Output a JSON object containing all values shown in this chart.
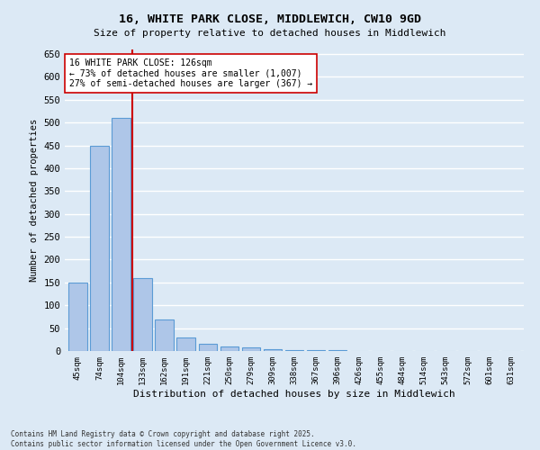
{
  "title_line1": "16, WHITE PARK CLOSE, MIDDLEWICH, CW10 9GD",
  "title_line2": "Size of property relative to detached houses in Middlewich",
  "xlabel": "Distribution of detached houses by size in Middlewich",
  "ylabel": "Number of detached properties",
  "categories": [
    "45sqm",
    "74sqm",
    "104sqm",
    "133sqm",
    "162sqm",
    "191sqm",
    "221sqm",
    "250sqm",
    "279sqm",
    "309sqm",
    "338sqm",
    "367sqm",
    "396sqm",
    "426sqm",
    "455sqm",
    "484sqm",
    "514sqm",
    "543sqm",
    "572sqm",
    "601sqm",
    "631sqm"
  ],
  "values": [
    150,
    450,
    510,
    160,
    68,
    30,
    15,
    10,
    8,
    4,
    2,
    1,
    1,
    0,
    0,
    0,
    0,
    0,
    0,
    0,
    0
  ],
  "bar_color": "#aec6e8",
  "bar_edge_color": "#5b9bd5",
  "background_color": "#dce9f5",
  "grid_color": "#ffffff",
  "vline_x_idx": 3,
  "vline_color": "#cc0000",
  "annotation_text": "16 WHITE PARK CLOSE: 126sqm\n← 73% of detached houses are smaller (1,007)\n27% of semi-detached houses are larger (367) →",
  "annotation_box_color": "#ffffff",
  "annotation_box_edge": "#cc0000",
  "footnote": "Contains HM Land Registry data © Crown copyright and database right 2025.\nContains public sector information licensed under the Open Government Licence v3.0.",
  "ylim": [
    0,
    660
  ],
  "yticks": [
    0,
    50,
    100,
    150,
    200,
    250,
    300,
    350,
    400,
    450,
    500,
    550,
    600,
    650
  ]
}
